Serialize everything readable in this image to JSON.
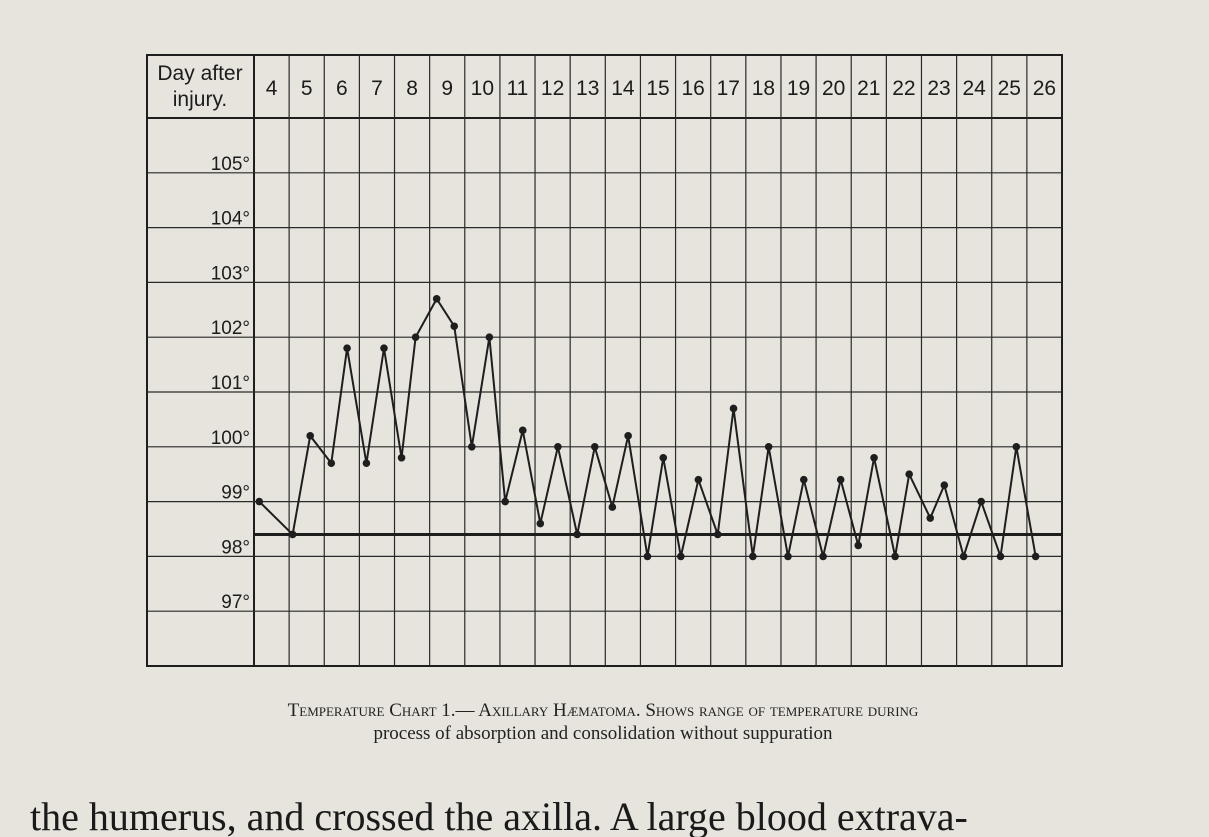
{
  "chart_data": {
    "type": "line",
    "header_label": [
      "Day after",
      "injury."
    ],
    "caption": [
      "Temperature Chart 1.— Axillary Hæmatoma.  Shows range of temperature during",
      "process of absorption and consolidation without suppuration"
    ],
    "body_text": "the humerus, and crossed the axilla.  A large blood extrava-",
    "xlim": [
      3.5,
      26.5
    ],
    "xticks": [
      4,
      5,
      6,
      7,
      8,
      9,
      10,
      11,
      12,
      13,
      14,
      15,
      16,
      17,
      18,
      19,
      20,
      21,
      22,
      23,
      24,
      25,
      26
    ],
    "ylim": [
      96,
      106
    ],
    "yticks": [
      {
        "value": 97,
        "label": "97°"
      },
      {
        "value": 98,
        "label": "98°"
      },
      {
        "value": 99,
        "label": "99°"
      },
      {
        "value": 100,
        "label": "100°"
      },
      {
        "value": 101,
        "label": "101°"
      },
      {
        "value": 102,
        "label": "102°"
      },
      {
        "value": 103,
        "label": "103°"
      },
      {
        "value": 104,
        "label": "104°"
      },
      {
        "value": 105,
        "label": "105°"
      }
    ],
    "reference_line": 98.4,
    "grid": true,
    "color": "#1e1e1e",
    "x": [
      3.65,
      4.6,
      5.1,
      5.7,
      6.15,
      6.7,
      7.2,
      7.7,
      8.1,
      8.7,
      9.2,
      9.7,
      10.2,
      10.65,
      11.15,
      11.65,
      12.15,
      12.7,
      13.2,
      13.7,
      14.15,
      14.7,
      15.15,
      15.65,
      16.15,
      16.7,
      17.15,
      17.7,
      18.15,
      18.7,
      19.15,
      19.7,
      20.2,
      20.7,
      21.15,
      21.75,
      22.15,
      22.75,
      23.15,
      23.7,
      24.2,
      24.75,
      25.2,
      25.75
    ],
    "values": [
      99,
      98.4,
      100.2,
      99.7,
      101.8,
      99.7,
      101.8,
      99.8,
      102,
      102.7,
      102.2,
      100,
      102,
      99,
      100.3,
      98.6,
      100,
      98.4,
      100,
      98.9,
      100.2,
      98,
      99.8,
      98,
      99.4,
      98.4,
      100.7,
      98,
      100,
      98,
      99.4,
      98,
      99.4,
      98.2,
      99.8,
      98,
      99.5,
      98.7,
      99.3,
      98,
      99,
      98,
      100,
      98
    ]
  }
}
